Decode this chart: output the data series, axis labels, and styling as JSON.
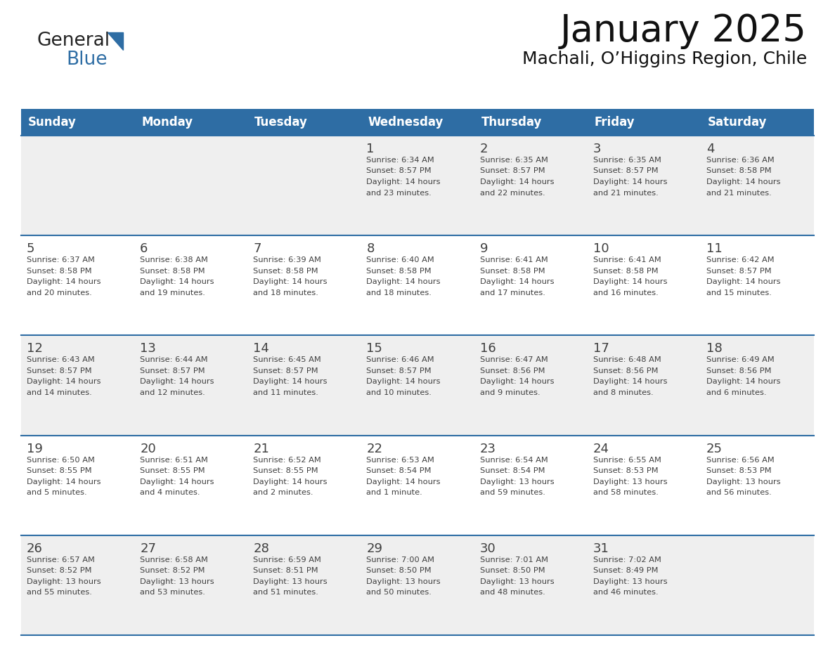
{
  "title": "January 2025",
  "subtitle": "Machali, O’Higgins Region, Chile",
  "days_of_week": [
    "Sunday",
    "Monday",
    "Tuesday",
    "Wednesday",
    "Thursday",
    "Friday",
    "Saturday"
  ],
  "header_bg": "#2E6DA4",
  "header_text": "#FFFFFF",
  "cell_bg_light": "#EFEFEF",
  "cell_bg_white": "#FFFFFF",
  "row_line_color": "#2E6DA4",
  "text_color": "#404040",
  "title_color": "#111111",
  "calendar_data": [
    [
      null,
      null,
      null,
      {
        "day": 1,
        "sunrise": "6:34 AM",
        "sunset": "8:57 PM",
        "daylight": "14 hours",
        "daylight2": "and 23 minutes."
      },
      {
        "day": 2,
        "sunrise": "6:35 AM",
        "sunset": "8:57 PM",
        "daylight": "14 hours",
        "daylight2": "and 22 minutes."
      },
      {
        "day": 3,
        "sunrise": "6:35 AM",
        "sunset": "8:57 PM",
        "daylight": "14 hours",
        "daylight2": "and 21 minutes."
      },
      {
        "day": 4,
        "sunrise": "6:36 AM",
        "sunset": "8:58 PM",
        "daylight": "14 hours",
        "daylight2": "and 21 minutes."
      }
    ],
    [
      {
        "day": 5,
        "sunrise": "6:37 AM",
        "sunset": "8:58 PM",
        "daylight": "14 hours",
        "daylight2": "and 20 minutes."
      },
      {
        "day": 6,
        "sunrise": "6:38 AM",
        "sunset": "8:58 PM",
        "daylight": "14 hours",
        "daylight2": "and 19 minutes."
      },
      {
        "day": 7,
        "sunrise": "6:39 AM",
        "sunset": "8:58 PM",
        "daylight": "14 hours",
        "daylight2": "and 18 minutes."
      },
      {
        "day": 8,
        "sunrise": "6:40 AM",
        "sunset": "8:58 PM",
        "daylight": "14 hours",
        "daylight2": "and 18 minutes."
      },
      {
        "day": 9,
        "sunrise": "6:41 AM",
        "sunset": "8:58 PM",
        "daylight": "14 hours",
        "daylight2": "and 17 minutes."
      },
      {
        "day": 10,
        "sunrise": "6:41 AM",
        "sunset": "8:58 PM",
        "daylight": "14 hours",
        "daylight2": "and 16 minutes."
      },
      {
        "day": 11,
        "sunrise": "6:42 AM",
        "sunset": "8:57 PM",
        "daylight": "14 hours",
        "daylight2": "and 15 minutes."
      }
    ],
    [
      {
        "day": 12,
        "sunrise": "6:43 AM",
        "sunset": "8:57 PM",
        "daylight": "14 hours",
        "daylight2": "and 14 minutes."
      },
      {
        "day": 13,
        "sunrise": "6:44 AM",
        "sunset": "8:57 PM",
        "daylight": "14 hours",
        "daylight2": "and 12 minutes."
      },
      {
        "day": 14,
        "sunrise": "6:45 AM",
        "sunset": "8:57 PM",
        "daylight": "14 hours",
        "daylight2": "and 11 minutes."
      },
      {
        "day": 15,
        "sunrise": "6:46 AM",
        "sunset": "8:57 PM",
        "daylight": "14 hours",
        "daylight2": "and 10 minutes."
      },
      {
        "day": 16,
        "sunrise": "6:47 AM",
        "sunset": "8:56 PM",
        "daylight": "14 hours",
        "daylight2": "and 9 minutes."
      },
      {
        "day": 17,
        "sunrise": "6:48 AM",
        "sunset": "8:56 PM",
        "daylight": "14 hours",
        "daylight2": "and 8 minutes."
      },
      {
        "day": 18,
        "sunrise": "6:49 AM",
        "sunset": "8:56 PM",
        "daylight": "14 hours",
        "daylight2": "and 6 minutes."
      }
    ],
    [
      {
        "day": 19,
        "sunrise": "6:50 AM",
        "sunset": "8:55 PM",
        "daylight": "14 hours",
        "daylight2": "and 5 minutes."
      },
      {
        "day": 20,
        "sunrise": "6:51 AM",
        "sunset": "8:55 PM",
        "daylight": "14 hours",
        "daylight2": "and 4 minutes."
      },
      {
        "day": 21,
        "sunrise": "6:52 AM",
        "sunset": "8:55 PM",
        "daylight": "14 hours",
        "daylight2": "and 2 minutes."
      },
      {
        "day": 22,
        "sunrise": "6:53 AM",
        "sunset": "8:54 PM",
        "daylight": "14 hours",
        "daylight2": "and 1 minute."
      },
      {
        "day": 23,
        "sunrise": "6:54 AM",
        "sunset": "8:54 PM",
        "daylight": "13 hours",
        "daylight2": "and 59 minutes."
      },
      {
        "day": 24,
        "sunrise": "6:55 AM",
        "sunset": "8:53 PM",
        "daylight": "13 hours",
        "daylight2": "and 58 minutes."
      },
      {
        "day": 25,
        "sunrise": "6:56 AM",
        "sunset": "8:53 PM",
        "daylight": "13 hours",
        "daylight2": "and 56 minutes."
      }
    ],
    [
      {
        "day": 26,
        "sunrise": "6:57 AM",
        "sunset": "8:52 PM",
        "daylight": "13 hours",
        "daylight2": "and 55 minutes."
      },
      {
        "day": 27,
        "sunrise": "6:58 AM",
        "sunset": "8:52 PM",
        "daylight": "13 hours",
        "daylight2": "and 53 minutes."
      },
      {
        "day": 28,
        "sunrise": "6:59 AM",
        "sunset": "8:51 PM",
        "daylight": "13 hours",
        "daylight2": "and 51 minutes."
      },
      {
        "day": 29,
        "sunrise": "7:00 AM",
        "sunset": "8:50 PM",
        "daylight": "13 hours",
        "daylight2": "and 50 minutes."
      },
      {
        "day": 30,
        "sunrise": "7:01 AM",
        "sunset": "8:50 PM",
        "daylight": "13 hours",
        "daylight2": "and 48 minutes."
      },
      {
        "day": 31,
        "sunrise": "7:02 AM",
        "sunset": "8:49 PM",
        "daylight": "13 hours",
        "daylight2": "and 46 minutes."
      },
      null
    ]
  ],
  "logo_general_color": "#222222",
  "logo_blue_color": "#2E6DA4"
}
